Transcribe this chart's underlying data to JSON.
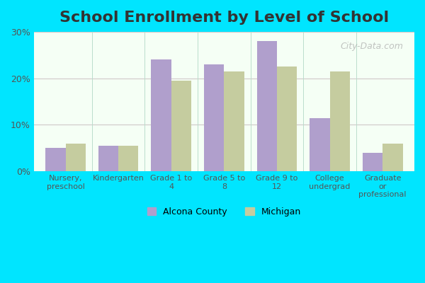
{
  "title": "School Enrollment by Level of School",
  "categories": [
    "Nursery,\npreschool",
    "Kindergarten",
    "Grade 1 to\n4",
    "Grade 5 to\n8",
    "Grade 9 to\n12",
    "College\nundergrad",
    "Graduate\nor\nprofessional"
  ],
  "alcona_values": [
    5.0,
    5.5,
    24.0,
    23.0,
    28.0,
    11.5,
    4.0
  ],
  "michigan_values": [
    6.0,
    5.5,
    19.5,
    21.5,
    22.5,
    21.5,
    6.0
  ],
  "alcona_color": "#b09fcc",
  "michigan_color": "#c5cc9f",
  "outer_background": "#00e5ff",
  "plot_bg_bottom": "#f5fff5",
  "ylim": [
    0,
    30
  ],
  "yticks": [
    0,
    10,
    20,
    30
  ],
  "ytick_labels": [
    "0%",
    "10%",
    "20%",
    "30%"
  ],
  "title_fontsize": 16,
  "legend_labels": [
    "Alcona County",
    "Michigan"
  ],
  "bar_width": 0.38,
  "grid_color": "#d0c8c8",
  "watermark_text": "City-Data.com"
}
